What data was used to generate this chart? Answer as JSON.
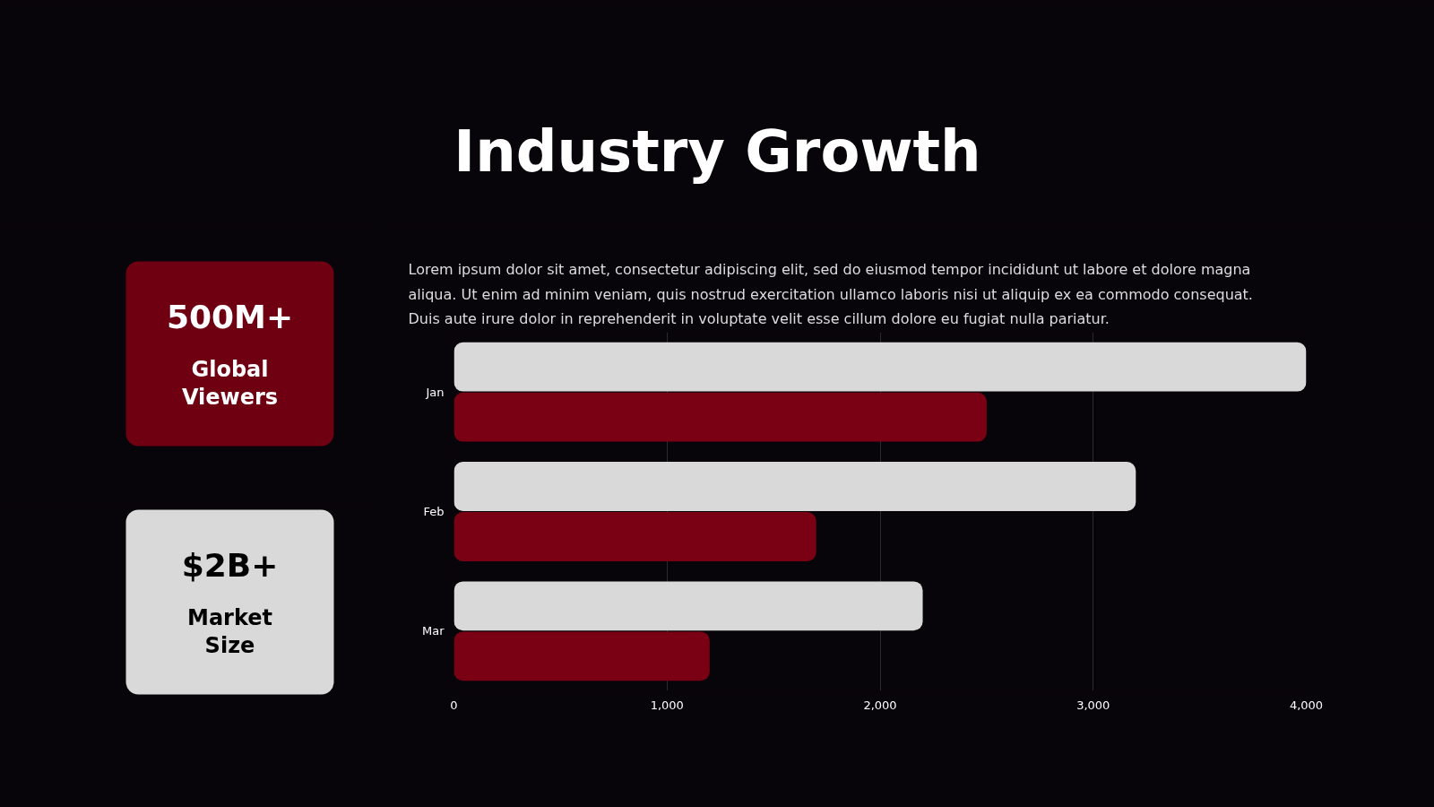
{
  "chart_data": [
    {
      "type": "other",
      "title": "500M+",
      "subtitle": "Global Viewers",
      "color": "#6e0012"
    },
    {
      "type": "other",
      "title": "$2B+",
      "subtitle": "Market Size",
      "color": "#d9d9d9"
    },
    {
      "type": "bar",
      "title": "Industry Growth",
      "subtitle": "Lorem ipsum dolor sit amet, consectetur adipiscing elit, sed do eiusmod tempor incididunt ut labore et dolore magna aliqua. Ut enim ad minim veniam, quis nostrud exercitation ullamco laboris nisi ut aliquip ex ea commodo consequat. Duis aute irure dolor in reprehenderit in voluptate velit esse cillum dolore eu fugiat nulla pariatur.",
      "orientation": "horizontal",
      "categories": [
        "Jan",
        "Feb",
        "Mar"
      ],
      "series": [
        {
          "color": "#d9d9d9",
          "values": [
            4000,
            3200,
            2200
          ]
        },
        {
          "color": "#7a0014",
          "values": [
            2500,
            1700,
            1200
          ]
        }
      ],
      "xlim": [
        0,
        4000
      ],
      "xticks": [
        0,
        {
          "value": 1000,
          "label": "1,000"
        },
        {
          "value": 2000,
          "label": "2,000"
        },
        {
          "value": 3000,
          "label": "3,000"
        },
        {
          "value": 4000,
          "label": "4,000"
        }
      ],
      "grid": "x"
    }
  ]
}
